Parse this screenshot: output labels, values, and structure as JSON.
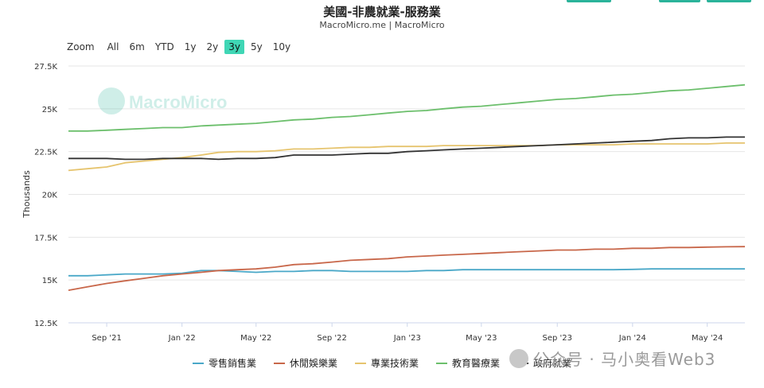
{
  "title": "美國-非農就業-服務業",
  "subtitle": "MacroMicro.me | MacroMicro",
  "zoom": {
    "label": "Zoom",
    "options": [
      "All",
      "6m",
      "YTD",
      "1y",
      "2y",
      "3y",
      "5y",
      "10y"
    ],
    "active": "3y"
  },
  "brand_watermark": "MacroMicro",
  "overlay_watermark": "公众号 · 马小奥看Web3",
  "colors": {
    "retail": "#4aa8c8",
    "leisure": "#c8674a",
    "professional": "#e6c46e",
    "education": "#6cbf6c",
    "government": "#333333",
    "accent": "#3fd6b5"
  },
  "chart_data": {
    "type": "line",
    "ylabel": "Thousands",
    "ylim": [
      12500,
      27500
    ],
    "yticks": [
      12500,
      15000,
      17500,
      20000,
      22500,
      25000,
      27500
    ],
    "ytick_labels": [
      "12.5K",
      "15K",
      "17.5K",
      "20K",
      "22.5K",
      "25K",
      "27.5K"
    ],
    "xlim": [
      "2021-07-01",
      "2024-07-01"
    ],
    "xticks": [
      "2021-09-01",
      "2022-01-01",
      "2022-05-01",
      "2022-09-01",
      "2023-01-01",
      "2023-05-01",
      "2023-09-01",
      "2024-01-01",
      "2024-05-01"
    ],
    "xtick_labels": [
      "Sep '21",
      "Jan '22",
      "May '22",
      "Sep '22",
      "Jan '23",
      "May '23",
      "Sep '23",
      "Jan '24",
      "May '24"
    ],
    "grid": true,
    "legend_position": "bottom",
    "x": [
      "2021-07-01",
      "2021-08-01",
      "2021-09-01",
      "2021-10-01",
      "2021-11-01",
      "2021-12-01",
      "2022-01-01",
      "2022-02-01",
      "2022-03-01",
      "2022-04-01",
      "2022-05-01",
      "2022-06-01",
      "2022-07-01",
      "2022-08-01",
      "2022-09-01",
      "2022-10-01",
      "2022-11-01",
      "2022-12-01",
      "2023-01-01",
      "2023-02-01",
      "2023-03-01",
      "2023-04-01",
      "2023-05-01",
      "2023-06-01",
      "2023-07-01",
      "2023-08-01",
      "2023-09-01",
      "2023-10-01",
      "2023-11-01",
      "2023-12-01",
      "2024-01-01",
      "2024-02-01",
      "2024-03-01",
      "2024-04-01",
      "2024-05-01",
      "2024-06-01",
      "2024-07-01"
    ],
    "series": [
      {
        "name": "零售銷售業",
        "color_key": "retail",
        "values": [
          15250,
          15250,
          15300,
          15350,
          15350,
          15350,
          15400,
          15550,
          15550,
          15500,
          15450,
          15500,
          15500,
          15550,
          15550,
          15500,
          15500,
          15500,
          15500,
          15550,
          15550,
          15600,
          15600,
          15600,
          15600,
          15600,
          15600,
          15600,
          15600,
          15600,
          15620,
          15650,
          15650,
          15650,
          15650,
          15650,
          15650
        ]
      },
      {
        "name": "休閒娛樂業",
        "color_key": "leisure",
        "values": [
          14400,
          14600,
          14800,
          14950,
          15100,
          15250,
          15350,
          15450,
          15550,
          15600,
          15650,
          15750,
          15900,
          15950,
          16050,
          16150,
          16200,
          16250,
          16350,
          16400,
          16450,
          16500,
          16550,
          16600,
          16650,
          16700,
          16750,
          16750,
          16800,
          16800,
          16850,
          16850,
          16900,
          16900,
          16920,
          16940,
          16950
        ]
      },
      {
        "name": "專業技術業",
        "color_key": "professional",
        "values": [
          21400,
          21500,
          21600,
          21850,
          21950,
          22050,
          22150,
          22300,
          22450,
          22500,
          22500,
          22550,
          22650,
          22650,
          22700,
          22750,
          22750,
          22800,
          22800,
          22800,
          22850,
          22850,
          22850,
          22850,
          22850,
          22850,
          22900,
          22900,
          22900,
          22900,
          22950,
          22950,
          22950,
          22950,
          22950,
          23000,
          23000
        ]
      },
      {
        "name": "教育醫療業",
        "color_key": "education",
        "values": [
          23700,
          23700,
          23750,
          23800,
          23850,
          23900,
          23900,
          24000,
          24050,
          24100,
          24150,
          24250,
          24350,
          24400,
          24500,
          24550,
          24650,
          24750,
          24850,
          24900,
          25000,
          25100,
          25150,
          25250,
          25350,
          25450,
          25550,
          25600,
          25700,
          25800,
          25850,
          25950,
          26050,
          26100,
          26200,
          26300,
          26400
        ]
      },
      {
        "name": "政府就業",
        "color_key": "government",
        "values": [
          22100,
          22100,
          22100,
          22050,
          22050,
          22100,
          22100,
          22100,
          22050,
          22100,
          22100,
          22150,
          22300,
          22300,
          22300,
          22350,
          22400,
          22400,
          22500,
          22550,
          22600,
          22650,
          22700,
          22750,
          22800,
          22850,
          22900,
          22950,
          23000,
          23050,
          23100,
          23150,
          23250,
          23300,
          23300,
          23350,
          23350
        ]
      }
    ]
  }
}
